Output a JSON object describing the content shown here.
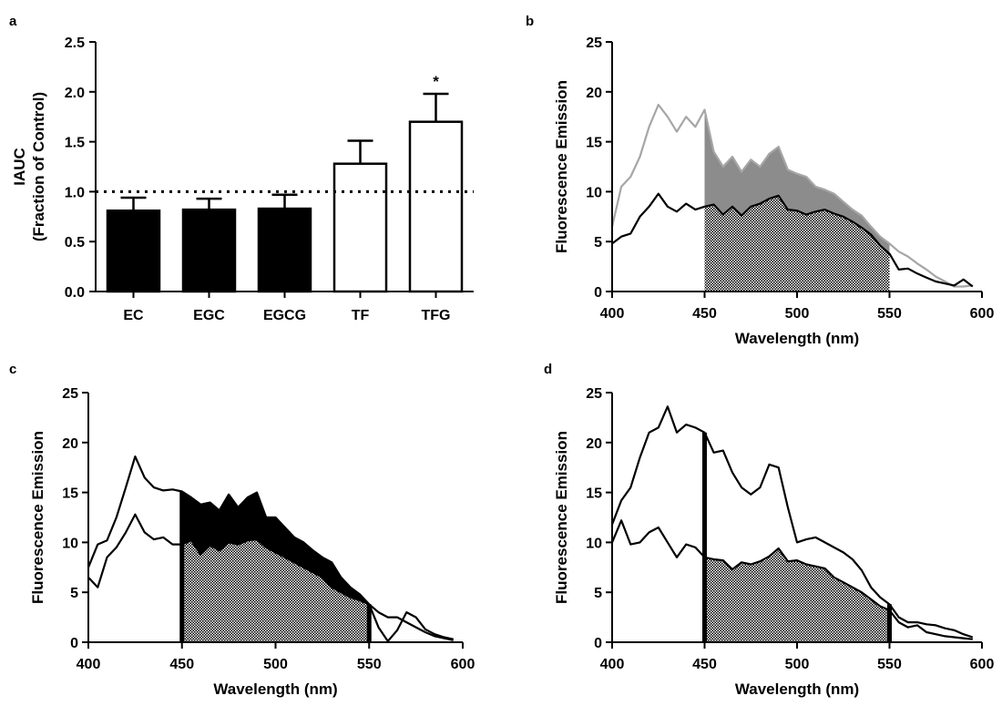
{
  "panels": [
    {
      "letter": "a"
    },
    {
      "letter": "b"
    },
    {
      "letter": "c"
    },
    {
      "letter": "d"
    }
  ],
  "colors": {
    "black": "#000000",
    "gray_line": "#a6a6a6",
    "gray_fill": "#8c8c8c",
    "white": "#ffffff"
  },
  "chart_data": [
    {
      "panel": "a",
      "type": "bar",
      "categories": [
        "EC",
        "EGC",
        "EGCG",
        "TF",
        "TFG"
      ],
      "values": [
        0.81,
        0.82,
        0.83,
        1.28,
        1.7
      ],
      "errors": [
        0.13,
        0.11,
        0.14,
        0.23,
        0.28
      ],
      "bar_fill": [
        "black",
        "black",
        "black",
        "white",
        "white"
      ],
      "annotations": [
        "",
        "",
        "",
        "",
        "*"
      ],
      "reference_line": 1.0,
      "ylabel": "IAUC",
      "ylabel2": "(Fraction of Control)",
      "yticks": [
        "0.0",
        "0.5",
        "1.0",
        "1.5",
        "2.0",
        "2.5"
      ],
      "ylim": [
        0,
        2.5
      ]
    },
    {
      "panel": "b",
      "type": "line",
      "xlabel": "Wavelength (nm)",
      "ylabel": "Fluorescence Emission",
      "xlim": [
        400,
        600
      ],
      "ylim": [
        0,
        25
      ],
      "xticks": [
        "400",
        "450",
        "500",
        "550",
        "600"
      ],
      "yticks": [
        "0",
        "5",
        "10",
        "15",
        "20",
        "25"
      ],
      "shaded_range": [
        450,
        550
      ],
      "series": [
        {
          "color": "gray",
          "x": [
            400,
            405,
            410,
            415,
            420,
            425,
            430,
            435,
            440,
            445,
            450,
            455,
            460,
            465,
            470,
            475,
            480,
            485,
            490,
            495,
            500,
            505,
            510,
            515,
            520,
            525,
            530,
            535,
            540,
            545,
            550,
            555,
            560,
            565,
            570,
            575,
            580,
            585,
            590,
            595
          ],
          "y": [
            6.5,
            10.5,
            11.5,
            13.5,
            16.5,
            18.7,
            17.5,
            16,
            17.5,
            16.5,
            18.2,
            14,
            12.5,
            13.5,
            12,
            13.2,
            12.5,
            13.8,
            14.5,
            12.2,
            11.8,
            11.5,
            10.5,
            10.2,
            9.8,
            9,
            8.2,
            7.6,
            6.5,
            5.5,
            4.8,
            4,
            3.5,
            2.8,
            2.2,
            1.5,
            1,
            0.5,
            0.5,
            0.6
          ]
        },
        {
          "color": "black",
          "x": [
            400,
            405,
            410,
            415,
            420,
            425,
            430,
            435,
            440,
            445,
            450,
            455,
            460,
            465,
            470,
            475,
            480,
            485,
            490,
            495,
            500,
            505,
            510,
            515,
            520,
            525,
            530,
            535,
            540,
            545,
            550,
            555,
            560,
            565,
            570,
            575,
            580,
            585,
            590,
            595
          ],
          "y": [
            4.8,
            5.5,
            5.8,
            7.5,
            8.5,
            9.8,
            8.5,
            8,
            8.8,
            8.2,
            8.5,
            8.7,
            7.7,
            8.5,
            7.6,
            8.5,
            8.8,
            9.3,
            9.6,
            8.2,
            8.1,
            7.7,
            8,
            8.2,
            7.8,
            7.5,
            7,
            6.4,
            5.7,
            4.6,
            3.8,
            2.2,
            2.3,
            1.8,
            1.4,
            1,
            0.8,
            0.6,
            1.2,
            0.5
          ]
        }
      ]
    },
    {
      "panel": "c",
      "type": "line",
      "xlabel": "Wavelength (nm)",
      "ylabel": "Fluorescence Emission",
      "xlim": [
        400,
        600
      ],
      "ylim": [
        0,
        25
      ],
      "xticks": [
        "400",
        "450",
        "500",
        "550",
        "600"
      ],
      "yticks": [
        "0",
        "5",
        "10",
        "15",
        "20",
        "25"
      ],
      "shaded_range": [
        450,
        550
      ],
      "series": [
        {
          "color": "black",
          "x": [
            400,
            405,
            410,
            415,
            420,
            425,
            430,
            435,
            440,
            445,
            450,
            455,
            460,
            465,
            470,
            475,
            480,
            485,
            490,
            495,
            500,
            505,
            510,
            515,
            520,
            525,
            530,
            535,
            540,
            545,
            550,
            555,
            560,
            565,
            570,
            575,
            580,
            585,
            590,
            595
          ],
          "y": [
            7.5,
            9.8,
            10.2,
            12.5,
            15.5,
            18.6,
            16.5,
            15.5,
            15.2,
            15.3,
            15.1,
            14.5,
            13.8,
            14,
            13.2,
            14.8,
            13.5,
            14.5,
            15,
            12.5,
            12.5,
            11.5,
            10.5,
            10,
            9.2,
            8.5,
            8,
            6.5,
            5.5,
            4.8,
            3.8,
            3,
            2.5,
            2.5,
            2,
            1.5,
            1,
            0.6,
            0.4,
            0.2
          ]
        },
        {
          "color": "black",
          "x": [
            400,
            405,
            410,
            415,
            420,
            425,
            430,
            435,
            440,
            445,
            450,
            455,
            460,
            465,
            470,
            475,
            480,
            485,
            490,
            495,
            500,
            505,
            510,
            515,
            520,
            525,
            530,
            535,
            540,
            545,
            550,
            555,
            560,
            565,
            570,
            575,
            580,
            585,
            590,
            595
          ],
          "y": [
            6.5,
            5.5,
            8.5,
            9.5,
            11,
            12.8,
            11,
            10.3,
            10.5,
            9.8,
            9.8,
            10.2,
            8.8,
            9.7,
            9.2,
            10,
            9.8,
            10.2,
            10.3,
            9.5,
            9,
            8.5,
            8,
            7.5,
            7,
            6.5,
            5.5,
            5,
            4.5,
            4.2,
            3.8,
            1.5,
            0.1,
            1.2,
            3,
            2.5,
            1.3,
            0.8,
            0.5,
            0.3
          ]
        }
      ]
    },
    {
      "panel": "d",
      "type": "line",
      "xlabel": "Wavelength (nm)",
      "ylabel": "Fluorescence Emission",
      "xlim": [
        400,
        600
      ],
      "ylim": [
        0,
        25
      ],
      "xticks": [
        "400",
        "450",
        "500",
        "550",
        "600"
      ],
      "yticks": [
        "0",
        "5",
        "10",
        "15",
        "20",
        "25"
      ],
      "shaded_range": [
        450,
        550
      ],
      "series": [
        {
          "color": "black",
          "x": [
            400,
            405,
            410,
            415,
            420,
            425,
            430,
            435,
            440,
            445,
            450,
            455,
            460,
            465,
            470,
            475,
            480,
            485,
            490,
            495,
            500,
            505,
            510,
            515,
            520,
            525,
            530,
            535,
            540,
            545,
            550,
            555,
            560,
            565,
            570,
            575,
            580,
            585,
            590,
            595
          ],
          "y": [
            11.8,
            14.2,
            15.5,
            18.5,
            21,
            21.5,
            23.6,
            21,
            21.8,
            21.5,
            21,
            19,
            19.2,
            17,
            15.5,
            14.8,
            15.5,
            17.8,
            17.5,
            13.5,
            10,
            10.3,
            10.5,
            10,
            9.5,
            9,
            8.3,
            7.2,
            5.5,
            4.5,
            3.8,
            2.5,
            2,
            2,
            1.8,
            1.7,
            1.4,
            1.2,
            0.8,
            0.5
          ]
        },
        {
          "color": "black",
          "x": [
            400,
            405,
            410,
            415,
            420,
            425,
            430,
            435,
            440,
            445,
            450,
            455,
            460,
            465,
            470,
            475,
            480,
            485,
            490,
            495,
            500,
            505,
            510,
            515,
            520,
            525,
            530,
            535,
            540,
            545,
            550,
            555,
            560,
            565,
            570,
            575,
            580,
            585,
            590,
            595
          ],
          "y": [
            10,
            12.2,
            9.8,
            10,
            11,
            11.5,
            10,
            8.5,
            9.8,
            9.5,
            8.5,
            8.3,
            8.2,
            7.3,
            8,
            7.8,
            8.1,
            8.6,
            9.4,
            8.1,
            8.2,
            7.8,
            7.6,
            7.4,
            6.5,
            6,
            5.5,
            5,
            4.3,
            3.6,
            3.2,
            2,
            1.5,
            1.7,
            1,
            0.8,
            0.6,
            0.5,
            0.4,
            0.3
          ]
        }
      ]
    }
  ]
}
